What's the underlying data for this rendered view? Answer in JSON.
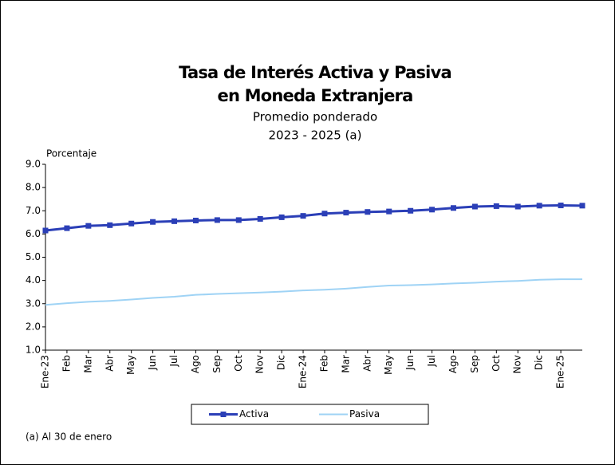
{
  "chart_data": {
    "type": "line",
    "title": [
      "Tasa de Interés Activa y Pasiva",
      "en Moneda Extranjera"
    ],
    "subtitle": [
      "Promedio ponderado",
      "2023 - 2025 (a)"
    ],
    "y_label": "Porcentaje",
    "note": "(a) Al 30 de enero",
    "categories": [
      "Ene-23",
      "Feb",
      "Mar",
      "Abr",
      "May",
      "Jun",
      "Jul",
      "Ago",
      "Sep",
      "Oct",
      "Nov",
      "Dic",
      "Ene-24",
      "Feb",
      "Mar",
      "Abr",
      "May",
      "Jun",
      "Jul",
      "Ago",
      "Sep",
      "Oct",
      "Nov",
      "Dic",
      "Ene-25",
      null
    ],
    "series": [
      {
        "name": "Activa",
        "color": "#2b3fb7",
        "marker": "square",
        "values": [
          6.15,
          6.25,
          6.35,
          6.38,
          6.45,
          6.52,
          6.55,
          6.58,
          6.6,
          6.6,
          6.65,
          6.72,
          6.78,
          6.88,
          6.92,
          6.95,
          6.97,
          7.0,
          7.05,
          7.12,
          7.18,
          7.2,
          7.18,
          7.22,
          7.23,
          7.22
        ]
      },
      {
        "name": "Pasiva",
        "color": "#9fd3f5",
        "values": [
          2.95,
          3.02,
          3.08,
          3.12,
          3.18,
          3.25,
          3.3,
          3.38,
          3.42,
          3.45,
          3.48,
          3.52,
          3.57,
          3.6,
          3.65,
          3.72,
          3.78,
          3.8,
          3.83,
          3.87,
          3.9,
          3.95,
          3.98,
          4.03,
          4.05,
          4.05
        ]
      }
    ],
    "ylim": [
      1,
      9
    ],
    "yticks": [
      {
        "value": 1,
        "label": "1.0"
      },
      {
        "value": 2,
        "label": "2.0"
      },
      {
        "value": 3,
        "label": "3.0"
      },
      {
        "value": 4,
        "label": "4.0"
      },
      {
        "value": 5,
        "label": "5.0"
      },
      {
        "value": 6,
        "label": "6.0"
      },
      {
        "value": 7,
        "label": "7.0"
      },
      {
        "value": 8,
        "label": "8.0"
      },
      {
        "value": 9,
        "label": "9.0"
      }
    ],
    "grid": false,
    "legend": "bottom"
  }
}
